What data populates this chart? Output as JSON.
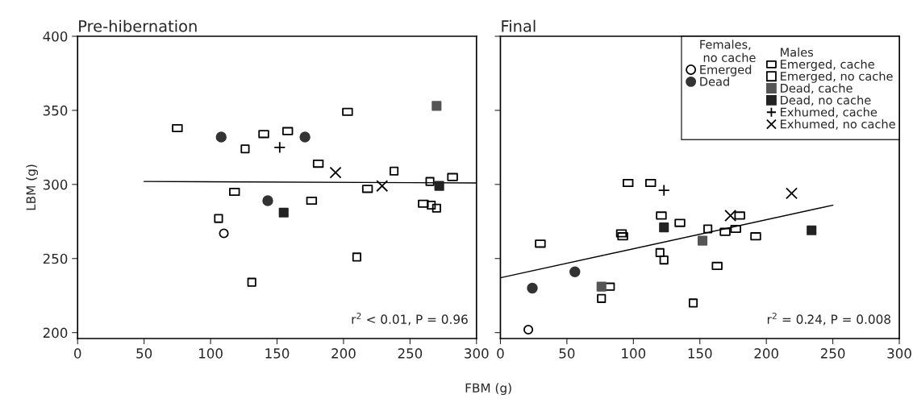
{
  "chart_data": [
    {
      "type": "scatter",
      "title": "Pre-hibernation",
      "xlabel": "FBM (g)",
      "ylabel": "LBM (g)",
      "xlim": [
        0,
        300
      ],
      "ylim": [
        196,
        400
      ],
      "xticks": [
        0,
        50,
        100,
        150,
        200,
        250,
        300
      ],
      "yticks": [
        200,
        250,
        300,
        350,
        400
      ],
      "grid": false,
      "legend": false,
      "annotations": [
        "r$^{2}$ < 0.01, P = 0.96"
      ],
      "series": [
        {
          "marker": "circle-open",
          "color": "#000000",
          "x": [
            110
          ],
          "values": [
            267
          ]
        },
        {
          "marker": "circle",
          "color": "#333333",
          "x": [
            108,
            171,
            143
          ],
          "values": [
            332,
            332,
            289
          ]
        },
        {
          "marker": "rectangle-open",
          "color": "#000000",
          "x": [
            75,
            118,
            140,
            158,
            203,
            181,
            176,
            218,
            260,
            282
          ],
          "values": [
            338,
            295,
            334,
            336,
            349,
            314,
            289,
            297,
            287,
            305
          ]
        },
        {
          "marker": "square-open",
          "color": "#000000",
          "x": [
            106,
            126,
            131,
            238,
            210,
            265,
            266,
            270
          ],
          "values": [
            277,
            324,
            234,
            309,
            251,
            302,
            286,
            284
          ]
        },
        {
          "marker": "square",
          "color": "#555555",
          "x": [
            270
          ],
          "values": [
            353
          ]
        },
        {
          "marker": "square",
          "color": "#222222",
          "x": [
            155,
            272
          ],
          "values": [
            281,
            299
          ]
        },
        {
          "marker": "plus",
          "color": "#000000",
          "x": [
            152
          ],
          "values": [
            325
          ]
        },
        {
          "marker": "cross",
          "color": "#000000",
          "x": [
            194,
            229
          ],
          "values": [
            308,
            299
          ]
        },
        {
          "type": "line",
          "marker": "none",
          "color": "#000000",
          "x": [
            50,
            300
          ],
          "values": [
            302,
            301
          ]
        }
      ]
    },
    {
      "type": "scatter",
      "title": "Final",
      "xlim": [
        0,
        300
      ],
      "ylim": [
        196,
        400
      ],
      "xticks": [
        0,
        50,
        100,
        150,
        200,
        250,
        300
      ],
      "yticks": [
        200,
        250,
        300,
        350,
        400
      ],
      "tick_labels": "x",
      "grid": false,
      "legend": "top right",
      "annotations": [
        "r$^{2}$ = 0.24, P = 0.008",
        "Females,\n no cache",
        "Males"
      ],
      "series": [
        {
          "name": "Emerged",
          "marker": "circle-open",
          "color": "#000000",
          "x": [
            21
          ],
          "values": [
            202
          ]
        },
        {
          "name": "Dead",
          "marker": "circle",
          "color": "#333333",
          "x": [
            24,
            56
          ],
          "values": [
            230,
            241
          ]
        },
        {
          "name": "Emerged, cache",
          "marker": "rectangle-open",
          "color": "#000000",
          "x": [
            96,
            113,
            121,
            135,
            91,
            92,
            30,
            82,
            169,
            177,
            180,
            192,
            163
          ],
          "values": [
            301,
            301,
            279,
            274,
            267,
            265,
            260,
            231,
            268,
            270,
            279,
            265,
            245
          ]
        },
        {
          "name": "Emerged, no cache",
          "marker": "square-open",
          "color": "#000000",
          "x": [
            120,
            123,
            76,
            156,
            145
          ],
          "values": [
            254,
            249,
            223,
            270,
            220
          ]
        },
        {
          "name": "Dead, cache",
          "marker": "square",
          "color": "#555555",
          "x": [
            76,
            152
          ],
          "values": [
            231,
            262
          ]
        },
        {
          "name": "Dead, no cache",
          "marker": "square",
          "color": "#222222",
          "x": [
            123,
            234
          ],
          "values": [
            271,
            269
          ]
        },
        {
          "name": "Exhumed, cache",
          "marker": "plus",
          "color": "#000000",
          "x": [
            123
          ],
          "values": [
            296
          ]
        },
        {
          "name": "Exhumed, no cache",
          "marker": "cross",
          "color": "#000000",
          "x": [
            219,
            173
          ],
          "values": [
            294,
            279
          ]
        },
        {
          "type": "line",
          "marker": "none",
          "color": "#000000",
          "x": [
            0,
            250
          ],
          "values": [
            237,
            286
          ]
        }
      ]
    }
  ]
}
